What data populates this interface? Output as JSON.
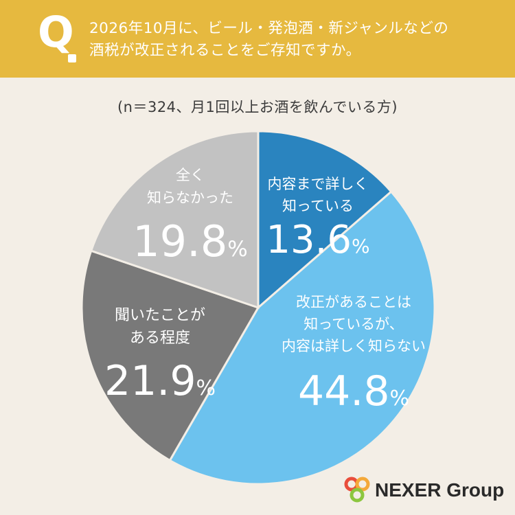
{
  "question": {
    "mark": "Q",
    "line1": "2026年10月に、ビール・発泡酒・新ジャンルなどの",
    "line2": "酒税が改正されることをご存知ですか。"
  },
  "sample_note": "(n＝324、月1回以上お酒を飲んでいる方)",
  "chart_data": {
    "type": "pie",
    "unit": "%",
    "slices": [
      {
        "label_lines": [
          "内容まで詳しく",
          "知っている"
        ],
        "value": 13.6,
        "value_text": "13.6",
        "color": "#2a84bf"
      },
      {
        "label_lines": [
          "改正があることは",
          "知っているが、",
          "内容は詳しく知らない"
        ],
        "value": 44.8,
        "value_text": "44.8",
        "color": "#6cc2ee"
      },
      {
        "label_lines": [
          "聞いたことが",
          "ある程度"
        ],
        "value": 21.9,
        "value_text": "21.9",
        "color": "#797979"
      },
      {
        "label_lines": [
          "全く",
          "知らなかった"
        ],
        "value": 19.8,
        "value_text": "19.8",
        "color": "#c2c2c2"
      }
    ]
  },
  "brand": {
    "name": "NEXER Group",
    "icon": "nexer-rings-logo-icon",
    "logo_colors": [
      "#e94e3c",
      "#f4a93a",
      "#8cc63f"
    ]
  }
}
